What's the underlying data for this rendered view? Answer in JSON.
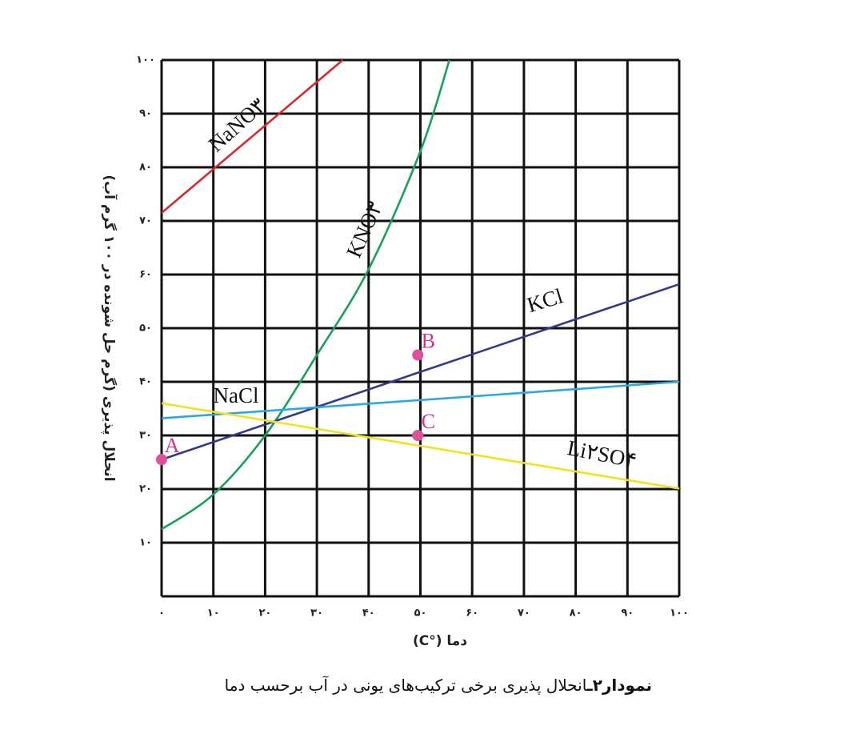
{
  "chart_data": {
    "type": "line",
    "title": "انحلال پذیری برخی ترکیب‌های یونی در آب برحسب دما",
    "figure_label": "نمودار۲ـ",
    "x_label": "دما (°C)",
    "y_label": "انحلال پذیری (گرم حل شونده در ۱۰۰ گرم آب)",
    "xlim": [
      0,
      100
    ],
    "ylim": [
      0,
      100
    ],
    "xticks": [
      {
        "value": 0,
        "label": "۰"
      },
      {
        "value": 10,
        "label": "۱۰"
      },
      {
        "value": 20,
        "label": "۲۰"
      },
      {
        "value": 30,
        "label": "۳۰"
      },
      {
        "value": 40,
        "label": "۴۰"
      },
      {
        "value": 50,
        "label": "۵۰"
      },
      {
        "value": 60,
        "label": "۶۰"
      },
      {
        "value": 70,
        "label": "۷۰"
      },
      {
        "value": 80,
        "label": "۸۰"
      },
      {
        "value": 90,
        "label": "۹۰"
      },
      {
        "value": 100,
        "label": "۱۰۰"
      }
    ],
    "yticks": [
      {
        "value": 10,
        "label": "۱۰"
      },
      {
        "value": 20,
        "label": "۲۰"
      },
      {
        "value": 30,
        "label": "۳۰"
      },
      {
        "value": 40,
        "label": "۴۰"
      },
      {
        "value": 50,
        "label": "۵۰"
      },
      {
        "value": 60,
        "label": "۶۰"
      },
      {
        "value": 70,
        "label": "۷۰"
      },
      {
        "value": 80,
        "label": "۸۰"
      },
      {
        "value": 90,
        "label": "۹۰"
      },
      {
        "value": 100,
        "label": "۱۰۰"
      }
    ],
    "grid": true,
    "series": [
      {
        "name": "NaNO۳",
        "color": "#d62a2a",
        "x": [
          0,
          35
        ],
        "values": [
          71.5,
          100
        ]
      },
      {
        "name": "KNO۳",
        "color": "#17a05a",
        "smooth": true,
        "x": [
          0,
          10,
          20,
          30,
          40,
          50,
          55.6
        ],
        "values": [
          12.5,
          19,
          30,
          45,
          61,
          83,
          100
        ]
      },
      {
        "name": "KCl",
        "color": "#2e3a8c",
        "x": [
          0,
          100
        ],
        "values": [
          25.5,
          58.2
        ]
      },
      {
        "name": "NaCl",
        "color": "#29a9df",
        "x": [
          0,
          100
        ],
        "values": [
          33.2,
          40
        ]
      },
      {
        "name": "Li۲SO۴",
        "color": "#f2e21b",
        "x": [
          0,
          100
        ],
        "values": [
          36,
          20.1
        ]
      }
    ],
    "points": [
      {
        "label": "A",
        "x": 0,
        "y": 25.5
      },
      {
        "label": "B",
        "x": 49.5,
        "y": 45
      },
      {
        "label": "C",
        "x": 49.5,
        "y": 30
      }
    ],
    "point_color": "#e0509a"
  }
}
